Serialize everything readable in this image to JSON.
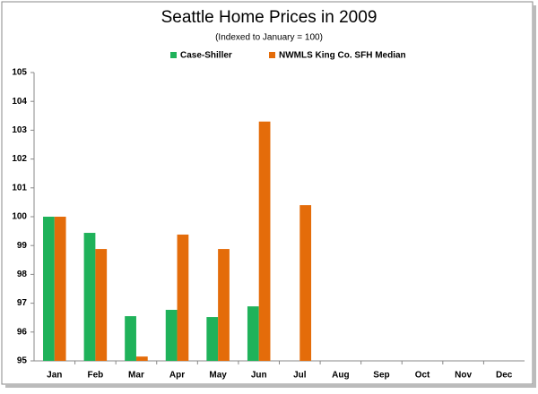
{
  "chart_data": {
    "type": "bar",
    "title": "Seattle Home Prices in 2009",
    "subtitle": "(Indexed to January = 100)",
    "categories": [
      "Jan",
      "Feb",
      "Mar",
      "Apr",
      "May",
      "Jun",
      "Jul",
      "Aug",
      "Sep",
      "Oct",
      "Nov",
      "Dec"
    ],
    "series": [
      {
        "name": "Case-Shiller",
        "color": "#1fb25a",
        "values": [
          100,
          99.44,
          96.55,
          96.77,
          96.52,
          96.89,
          null,
          null,
          null,
          null,
          null,
          null
        ]
      },
      {
        "name": "NWMLS King Co. SFH Median",
        "color": "#e46c0a",
        "values": [
          100,
          98.88,
          95.15,
          99.38,
          98.88,
          103.3,
          100.4,
          null,
          null,
          null,
          null,
          null
        ]
      }
    ],
    "ylim": [
      95,
      105
    ],
    "yticks": [
      95,
      96,
      97,
      98,
      99,
      100,
      101,
      102,
      103,
      104,
      105
    ],
    "grid": false,
    "legend": "top"
  }
}
